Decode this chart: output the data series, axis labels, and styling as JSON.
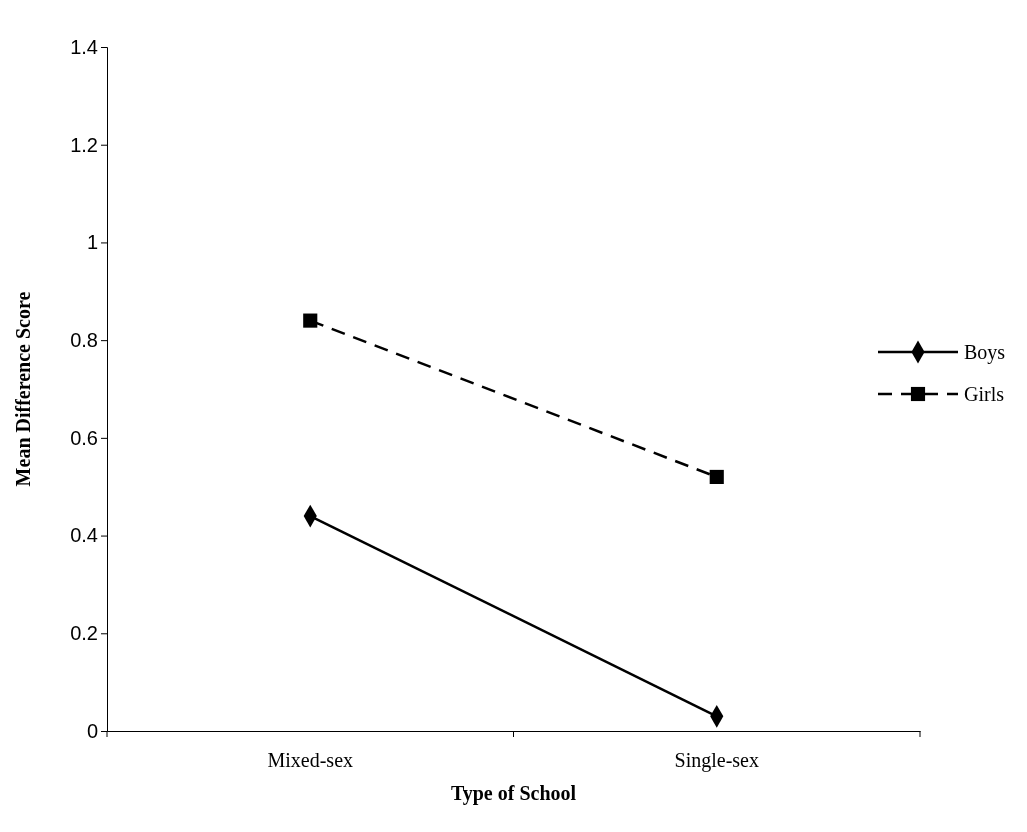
{
  "chart_data": {
    "type": "line",
    "xlabel": "Type of School",
    "ylabel": "Mean Difference Score",
    "categories": [
      "Mixed-sex",
      "Single-sex"
    ],
    "series": [
      {
        "name": "Boys",
        "color": "#000000",
        "values": [
          0.44,
          0.03
        ],
        "marker": "diamond",
        "line_style": "solid"
      },
      {
        "name": "Girls",
        "color": "#000000",
        "values": [
          0.84,
          0.52
        ],
        "marker": "square",
        "line_style": "dashed"
      }
    ],
    "ylim": [
      0,
      1.4
    ],
    "yticks": [
      0,
      0.2,
      0.4,
      0.6,
      0.8,
      1,
      1.2,
      1.4
    ],
    "legend": "right",
    "grid": false
  }
}
